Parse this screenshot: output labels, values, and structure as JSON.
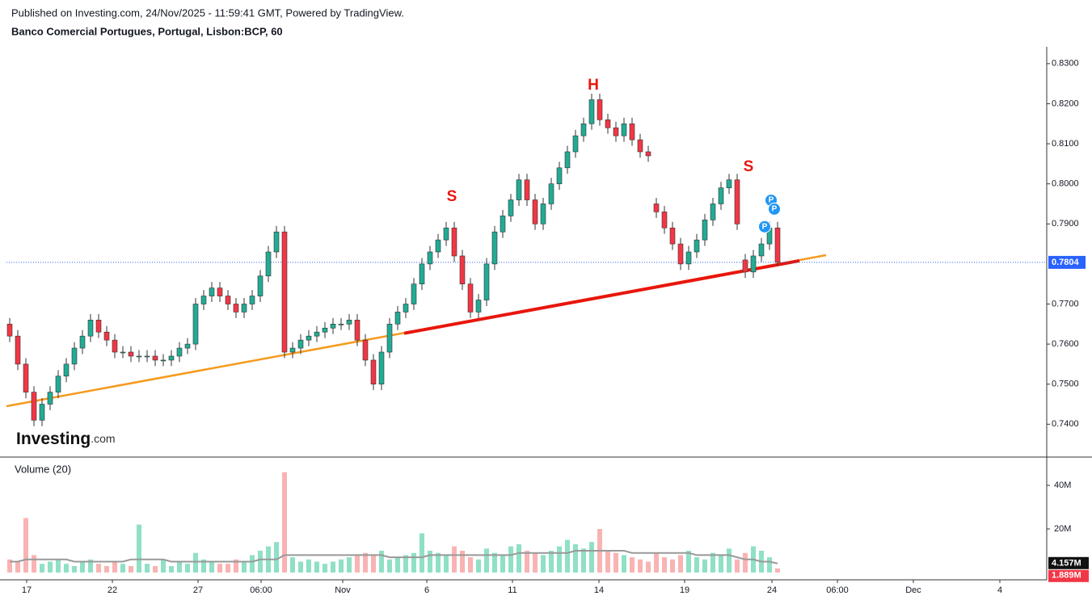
{
  "chart_data": {
    "type": "candlestick",
    "published": "Published on Investing.com, 24/Nov/2025 - 11:59:41 GMT, Powered by TradingView.",
    "title": "Banco Comercial Portugues, Portugal, Lisbon:BCP, 60",
    "logo": {
      "brand": "Investing",
      "suffix": ".com"
    },
    "up_color": "#22ab94",
    "down_color": "#f23645",
    "open": [
      0.765,
      0.762,
      0.755,
      0.748,
      0.741,
      0.745,
      0.748,
      0.752,
      0.755,
      0.759,
      0.762,
      0.766,
      0.763,
      0.761,
      0.758,
      0.758,
      0.757,
      0.757,
      0.757,
      0.756,
      0.756,
      0.757,
      0.759,
      0.76,
      0.77,
      0.772,
      0.774,
      0.772,
      0.77,
      0.768,
      0.77,
      0.772,
      0.777,
      0.783,
      0.788,
      0.758,
      0.759,
      0.761,
      0.762,
      0.763,
      0.764,
      0.765,
      0.765,
      0.766,
      0.761,
      0.756,
      0.75,
      0.758,
      0.765,
      0.768,
      0.77,
      0.775,
      0.78,
      0.783,
      0.786,
      0.789,
      0.782,
      0.775,
      0.768,
      0.771,
      0.78,
      0.788,
      0.792,
      0.796,
      0.801,
      0.796,
      0.79,
      0.795,
      0.8,
      0.804,
      0.808,
      0.812,
      0.815,
      0.821,
      0.816,
      0.814,
      0.812,
      0.815,
      0.811,
      0.808,
      0.795,
      0.793,
      0.789,
      0.785,
      0.78,
      0.783,
      0.786,
      0.791,
      0.795,
      0.799,
      0.801,
      0.781,
      0.778,
      0.782,
      0.785,
      0.789
    ],
    "high": [
      0.7665,
      0.7635,
      0.7565,
      0.7495,
      0.7465,
      0.7495,
      0.7535,
      0.7565,
      0.7605,
      0.7635,
      0.7675,
      0.7675,
      0.7645,
      0.7625,
      0.7595,
      0.7595,
      0.7585,
      0.7585,
      0.7585,
      0.7575,
      0.7585,
      0.7605,
      0.7615,
      0.7715,
      0.7735,
      0.7755,
      0.7755,
      0.7735,
      0.7715,
      0.7715,
      0.7735,
      0.7785,
      0.7845,
      0.7895,
      0.7895,
      0.7605,
      0.7625,
      0.7635,
      0.7645,
      0.7655,
      0.7665,
      0.7665,
      0.7675,
      0.7675,
      0.7625,
      0.7575,
      0.7595,
      0.7665,
      0.7695,
      0.7715,
      0.7765,
      0.7815,
      0.7845,
      0.7875,
      0.7905,
      0.7905,
      0.7835,
      0.7765,
      0.7725,
      0.7815,
      0.7895,
      0.7935,
      0.7975,
      0.8025,
      0.8025,
      0.7975,
      0.7965,
      0.8015,
      0.8055,
      0.8095,
      0.8135,
      0.8165,
      0.8225,
      0.8225,
      0.8175,
      0.8155,
      0.8165,
      0.8165,
      0.8125,
      0.8095,
      0.7965,
      0.7945,
      0.7905,
      0.7865,
      0.7845,
      0.7875,
      0.7925,
      0.7965,
      0.8005,
      0.8025,
      0.8025,
      0.7825,
      0.7835,
      0.7865,
      0.7905,
      0.7905
    ],
    "low": [
      0.7605,
      0.7535,
      0.7465,
      0.7395,
      0.7395,
      0.7435,
      0.7465,
      0.7505,
      0.7535,
      0.7575,
      0.7605,
      0.7615,
      0.7595,
      0.7565,
      0.7565,
      0.7555,
      0.7555,
      0.7555,
      0.7545,
      0.7545,
      0.7545,
      0.7555,
      0.7575,
      0.7585,
      0.7685,
      0.7705,
      0.7705,
      0.7685,
      0.7665,
      0.7665,
      0.7685,
      0.7705,
      0.7755,
      0.7815,
      0.7565,
      0.7565,
      0.7575,
      0.7595,
      0.7605,
      0.7615,
      0.7625,
      0.7635,
      0.7635,
      0.7595,
      0.7545,
      0.7485,
      0.7485,
      0.7565,
      0.7635,
      0.7665,
      0.7685,
      0.7735,
      0.7785,
      0.7815,
      0.7845,
      0.7805,
      0.7735,
      0.7665,
      0.7665,
      0.7695,
      0.7785,
      0.7865,
      0.7905,
      0.7945,
      0.7945,
      0.7885,
      0.7885,
      0.7935,
      0.7985,
      0.8025,
      0.8065,
      0.8105,
      0.8135,
      0.8145,
      0.8125,
      0.8105,
      0.8105,
      0.8095,
      0.8065,
      0.8055,
      0.7915,
      0.7875,
      0.7835,
      0.7785,
      0.7785,
      0.7815,
      0.7845,
      0.7895,
      0.7935,
      0.7975,
      0.7885,
      0.7765,
      0.7765,
      0.7805,
      0.7835,
      0.7795
    ],
    "close": [
      0.762,
      0.755,
      0.748,
      0.741,
      0.745,
      0.748,
      0.752,
      0.755,
      0.759,
      0.762,
      0.766,
      0.763,
      0.761,
      0.758,
      0.758,
      0.757,
      0.757,
      0.757,
      0.756,
      0.756,
      0.757,
      0.759,
      0.76,
      0.77,
      0.772,
      0.774,
      0.772,
      0.77,
      0.768,
      0.77,
      0.772,
      0.777,
      0.783,
      0.788,
      0.758,
      0.759,
      0.761,
      0.762,
      0.763,
      0.764,
      0.765,
      0.765,
      0.766,
      0.761,
      0.756,
      0.75,
      0.758,
      0.765,
      0.768,
      0.77,
      0.775,
      0.78,
      0.783,
      0.786,
      0.789,
      0.782,
      0.775,
      0.768,
      0.771,
      0.78,
      0.788,
      0.792,
      0.796,
      0.801,
      0.796,
      0.79,
      0.795,
      0.8,
      0.804,
      0.808,
      0.812,
      0.815,
      0.821,
      0.816,
      0.814,
      0.812,
      0.815,
      0.811,
      0.808,
      0.807,
      0.793,
      0.789,
      0.785,
      0.78,
      0.783,
      0.786,
      0.791,
      0.795,
      0.799,
      0.801,
      0.79,
      0.778,
      0.782,
      0.785,
      0.789,
      0.7804
    ],
    "last_price": {
      "value": 0.7804,
      "label": "0.7804"
    },
    "last_price_color": "#2962ff",
    "xlim": [
      -1.2,
      128.3
    ],
    "xticks": [
      {
        "value": 2.1,
        "label": "17"
      },
      {
        "value": 12.7,
        "label": "22"
      },
      {
        "value": 23.3,
        "label": "27"
      },
      {
        "value": 31.1,
        "label": "06:00"
      },
      {
        "value": 41.2,
        "label": "Nov"
      },
      {
        "value": 51.6,
        "label": "6"
      },
      {
        "value": 62.2,
        "label": "11"
      },
      {
        "value": 72.9,
        "label": "14"
      },
      {
        "value": 83.5,
        "label": "19"
      },
      {
        "value": 94.3,
        "label": "24"
      },
      {
        "value": 102.4,
        "label": "06:00"
      },
      {
        "value": 111.8,
        "label": "Dec"
      },
      {
        "value": 122.5,
        "label": "4"
      }
    ],
    "ylim": [
      0.7318,
      0.8342
    ],
    "yticks": [
      {
        "value": 0.83,
        "label": "0.8300"
      },
      {
        "value": 0.82,
        "label": "0.8200"
      },
      {
        "value": 0.81,
        "label": "0.8100"
      },
      {
        "value": 0.8,
        "label": "0.8000"
      },
      {
        "value": 0.79,
        "label": "0.7900"
      },
      {
        "value": 0.77,
        "label": "0.7700"
      },
      {
        "value": 0.76,
        "label": "0.7600"
      },
      {
        "value": 0.75,
        "label": "0.7500"
      },
      {
        "value": 0.74,
        "label": "0.7400"
      }
    ],
    "trendlines": [
      {
        "color": "#f59a1c",
        "x": [
          -0.4,
          101
        ],
        "y": [
          0.7445,
          0.7822
        ]
      },
      {
        "color": "#e8160c",
        "x": [
          48.8,
          97.7
        ],
        "y": [
          0.7627,
          0.7808
        ]
      }
    ],
    "annotations": [
      {
        "text": "H",
        "x": 72.2,
        "y": 0.8245
      },
      {
        "text": "S",
        "x": 54.7,
        "y": 0.7967
      },
      {
        "text": "S",
        "x": 91.4,
        "y": 0.8042
      }
    ],
    "annotation_color": "#e8160c",
    "markers": [
      {
        "text": "P",
        "x": 93.4,
        "y": 0.7893
      },
      {
        "text": "P",
        "x": 94.2,
        "y": 0.7959
      },
      {
        "text": "P",
        "x": 94.6,
        "y": 0.7937
      }
    ],
    "marker_color": "#2196f3",
    "volume": {
      "title": "Volume (20)",
      "up_color": "#8fe0c4",
      "down_color": "#f9b3b3",
      "ma_color": "#999999",
      "values": [
        6,
        5,
        25,
        8,
        4,
        5,
        6,
        4,
        3,
        5,
        6,
        4,
        3,
        5,
        4,
        3,
        22,
        4,
        3,
        6,
        3,
        5,
        4,
        9,
        6,
        5,
        4,
        4,
        6,
        5,
        8,
        10,
        12,
        14,
        46,
        7,
        5,
        6,
        5,
        4,
        5,
        6,
        7,
        8,
        9,
        8,
        10,
        6,
        7,
        8,
        9,
        18,
        10,
        9,
        8,
        12,
        10,
        7,
        6,
        11,
        9,
        8,
        12,
        13,
        10,
        9,
        8,
        10,
        12,
        15,
        13,
        11,
        14,
        20,
        10,
        9,
        8,
        7,
        6,
        5,
        9,
        7,
        6,
        8,
        10,
        7,
        6,
        9,
        8,
        11,
        6,
        9,
        12,
        10,
        7,
        1.889
      ],
      "value_label": "1.889M",
      "ma": [
        5,
        5,
        6,
        6,
        6,
        6,
        6,
        6,
        5,
        5,
        5,
        5,
        5,
        5,
        5,
        6,
        6,
        6,
        6,
        6,
        5,
        5,
        5,
        5,
        5,
        5,
        5,
        5,
        5,
        5,
        5,
        6,
        6,
        6,
        8,
        8,
        8,
        8,
        8,
        8,
        8,
        8,
        8,
        8,
        8,
        8,
        8,
        7,
        7,
        7,
        7,
        7,
        8,
        8,
        8,
        8,
        8,
        8,
        8,
        8,
        8,
        8,
        8,
        9,
        9,
        9,
        9,
        9,
        9,
        9,
        10,
        10,
        10,
        10,
        10,
        10,
        10,
        9,
        9,
        9,
        9,
        9,
        9,
        9,
        9,
        8,
        8,
        8,
        8,
        8,
        7,
        6,
        6,
        5,
        5,
        4.157
      ],
      "ma_label": "4.157M",
      "ylim": [
        0,
        52.6
      ],
      "yticks": [
        {
          "value": 40,
          "label": "40M"
        },
        {
          "value": 20,
          "label": "20M"
        }
      ]
    }
  }
}
